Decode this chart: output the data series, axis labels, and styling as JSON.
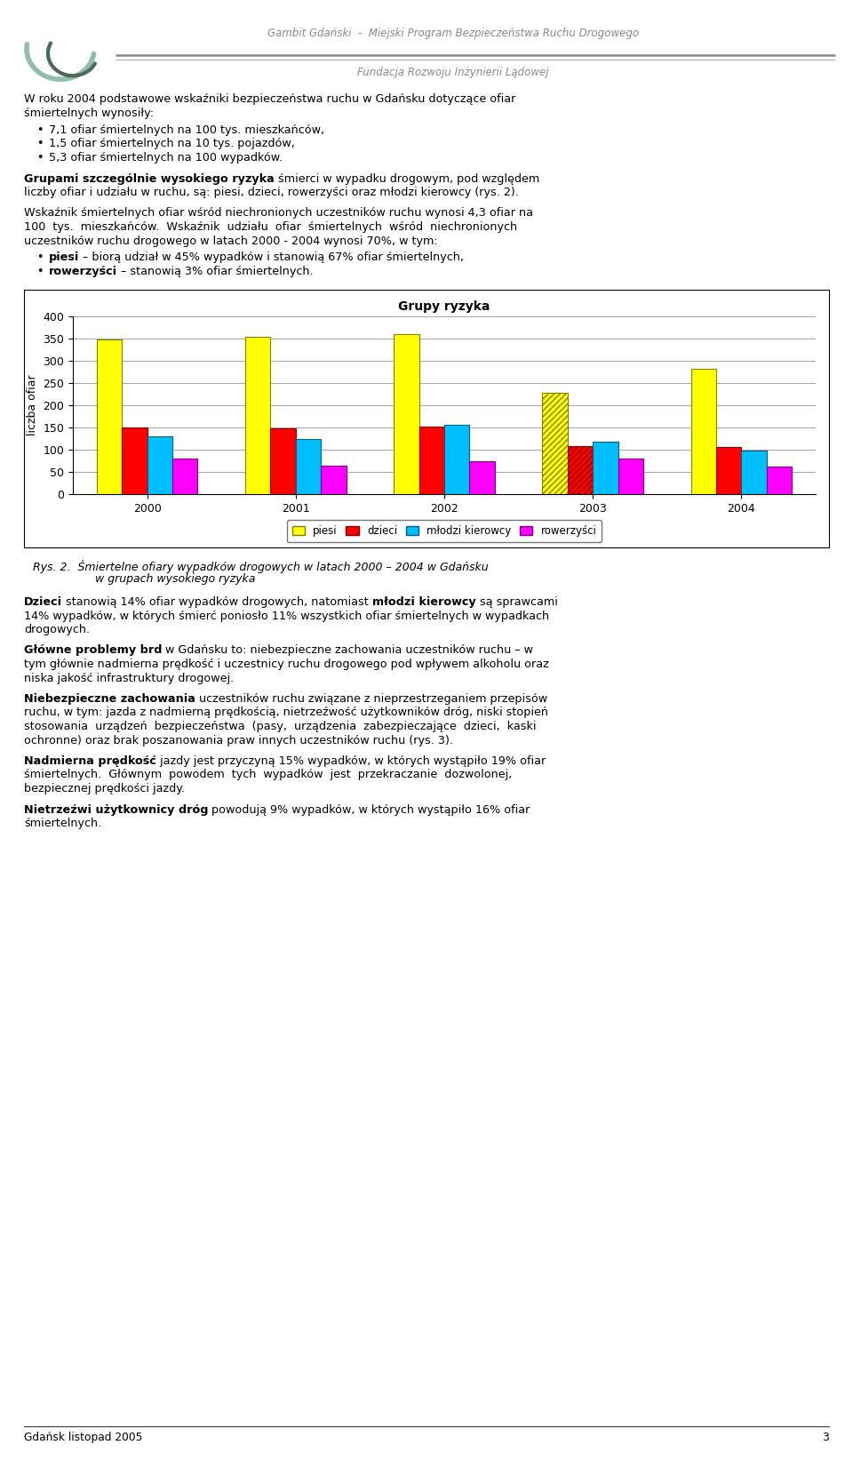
{
  "header_line1": "Gambit Gdański  -  Miejski Program Bezpieczeństwa Ruchu Drogowego",
  "header_line2": "Fundacja Rozwoju Inżynierii Lądowej",
  "page_number": "3",
  "footer": "Gdańsk listopad 2005",
  "chart_title": "Grupy ryzyka",
  "chart_ylabel": "liczba ofiar",
  "years": [
    "2000",
    "2001",
    "2002",
    "2003",
    "2004"
  ],
  "piesi": [
    348,
    354,
    361,
    228,
    282
  ],
  "dzieci": [
    151,
    149,
    152,
    108,
    106
  ],
  "mlodzi_kierowcy": [
    131,
    124,
    157,
    119,
    99
  ],
  "rowerzyści": [
    80,
    64,
    74,
    80,
    62
  ],
  "piesi_color": "#FFFF00",
  "dzieci_color": "#FF0000",
  "mlodzi_color": "#00BFFF",
  "rowerz_color": "#FF00FF",
  "piesi_edge": "#808000",
  "dzieci_edge": "#8B0000",
  "mlodzi_edge": "#006080",
  "rowerz_edge": "#800080",
  "ylim": [
    0,
    400
  ],
  "yticks": [
    0,
    50,
    100,
    150,
    200,
    250,
    300,
    350,
    400
  ],
  "legend_labels": [
    "piesi",
    "dzieci",
    "młodzi kierowcy",
    "rowerzyści"
  ],
  "bullet_points": [
    "7,1 ofiar śmiertelnych na 100 tys. mieszkańców,",
    "1,5 ofiar śmiertelnych na 10 tys. pojazdów,",
    "5,3 ofiar śmiertelnych na 100 wypadków."
  ],
  "para1_bold": "Grupami szczególnie wysokiego ryzyka",
  "para1_rest": " śmierci w wypadku drogowym, pod względem liczby ofiar i udziału w ruchu, są: piesi, dzieci, rowerzyści oraz młodzi kierowcy (rys. 2).",
  "para2_lines": [
    "Wskaźnik śmiertelnych ofiar wśród niechronionych uczestników ruchu wynosi 4,3 ofiar na",
    "100  tys.  mieszkańców.  Wskaźnik  udziału  ofiar  śmiertelnych  wśród  niechronionych",
    "uczestników ruchu drogowego w latach 2000 - 2004 wynosi 70%, w tym:"
  ],
  "caption_line1": "Rys. 2.  Śmiertelne ofiary wypadków drogowych w latach 2000 – 2004 w Gdańsku",
  "caption_line2": "w grupach wysokiego ryzyka",
  "para_dzieci_bold": "Dzieci",
  "para_dzieci_mid": " stanowią 14% ofiar wypadków drogowych, natomiast ",
  "para_dzieci_bold2": "młodzi kierowcy",
  "para_dzieci_rest": " są sprawcami",
  "para_dzieci_lines2": [
    "14% wypadków, w których śmierć poniosło 11% wszystkich ofiar śmiertelnych w wypadkach",
    "drogowych."
  ],
  "para_glowne_bold": "Główne problemy brd",
  "para_glowne_lines": [
    " w Gdańsku to: niebezpieczne zachowania uczestników ruchu – w",
    "tym głównie nadmierna prędkość i uczestnicy ruchu drogowego pod wpływem alkoholu oraz",
    "niska jakość infrastruktury drogowej."
  ],
  "para_niebez_bold": "Niebezpieczne zachowania",
  "para_niebez_lines": [
    " uczestników ruchu związane z nieprzestrzeganiem przepisów",
    "ruchu, w tym: jazda z nadmierną prędkością, nietrzeźwość użytkowników dróg, niski stopień",
    "stosowania  urządzeń  bezpieczeństwa  (pasy,  urządzenia  zabezpieczające  dzieci,  kaski",
    "ochronne) oraz brak poszanowania praw innych uczestników ruchu (rys. 3)."
  ],
  "para_nadm_bold": "Nadmierna prędkość",
  "para_nadm_lines": [
    " jazdy jest przyczyną 15% wypadków, w których wystąpiło 19% ofiar",
    "śmiertelnych.  Głównym  powodem  tych  wypadków  jest  przekraczanie  dozwolonej,",
    "bezpiecznej prędkości jazdy."
  ],
  "para_nit_bold": "Nietrzeźwi użytkownicy dróg",
  "para_nit_lines": [
    " powodują 9% wypadków, w których wystąpiło 16% ofiar",
    "śmiertelnych."
  ]
}
